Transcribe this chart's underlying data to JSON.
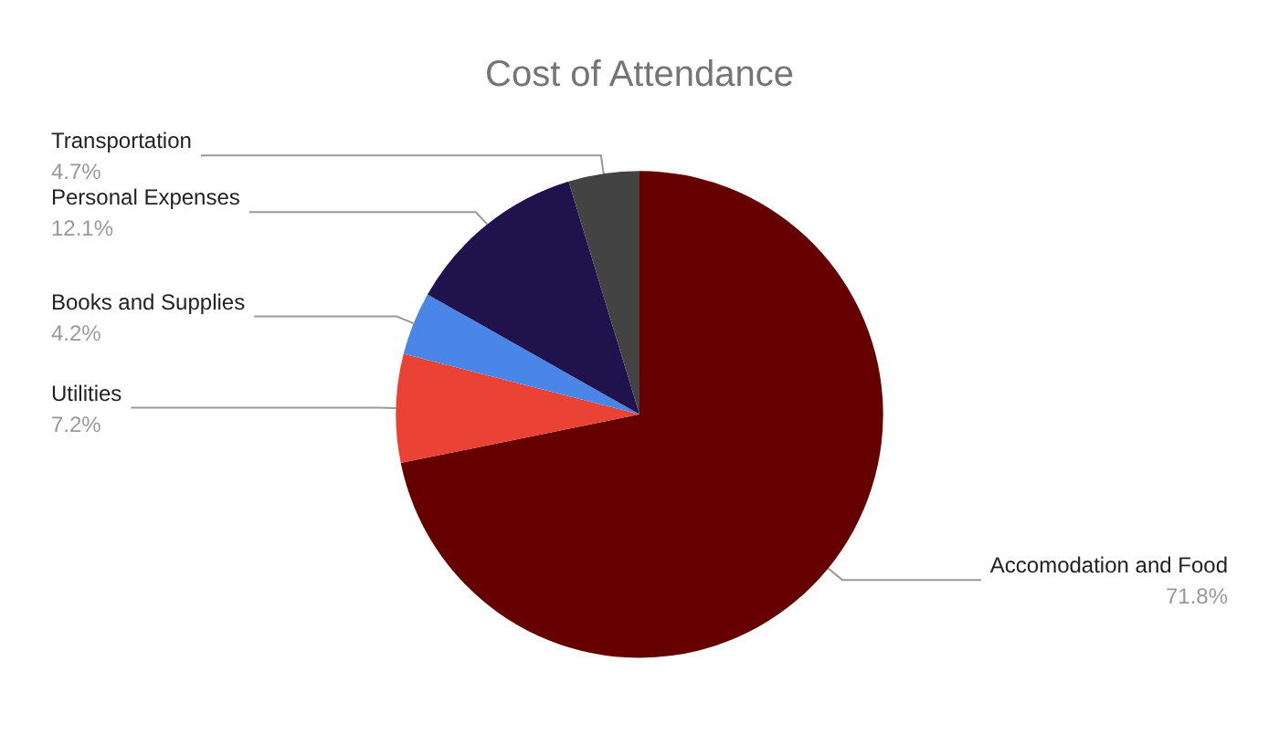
{
  "chart_data": {
    "type": "pie",
    "title": "Cost of Attendance",
    "categories": [
      "Accomodation and Food",
      "Utilities",
      "Books and Supplies",
      "Personal Expenses",
      "Transportation"
    ],
    "values": [
      71.8,
      7.2,
      4.2,
      12.1,
      4.7
    ],
    "value_labels": [
      "71.8%",
      "7.2%",
      "4.2%",
      "12.1%",
      "4.7%"
    ],
    "colors": [
      "#660000",
      "#ea4335",
      "#4a86e8",
      "#20124d",
      "#434343"
    ],
    "legend": false
  }
}
